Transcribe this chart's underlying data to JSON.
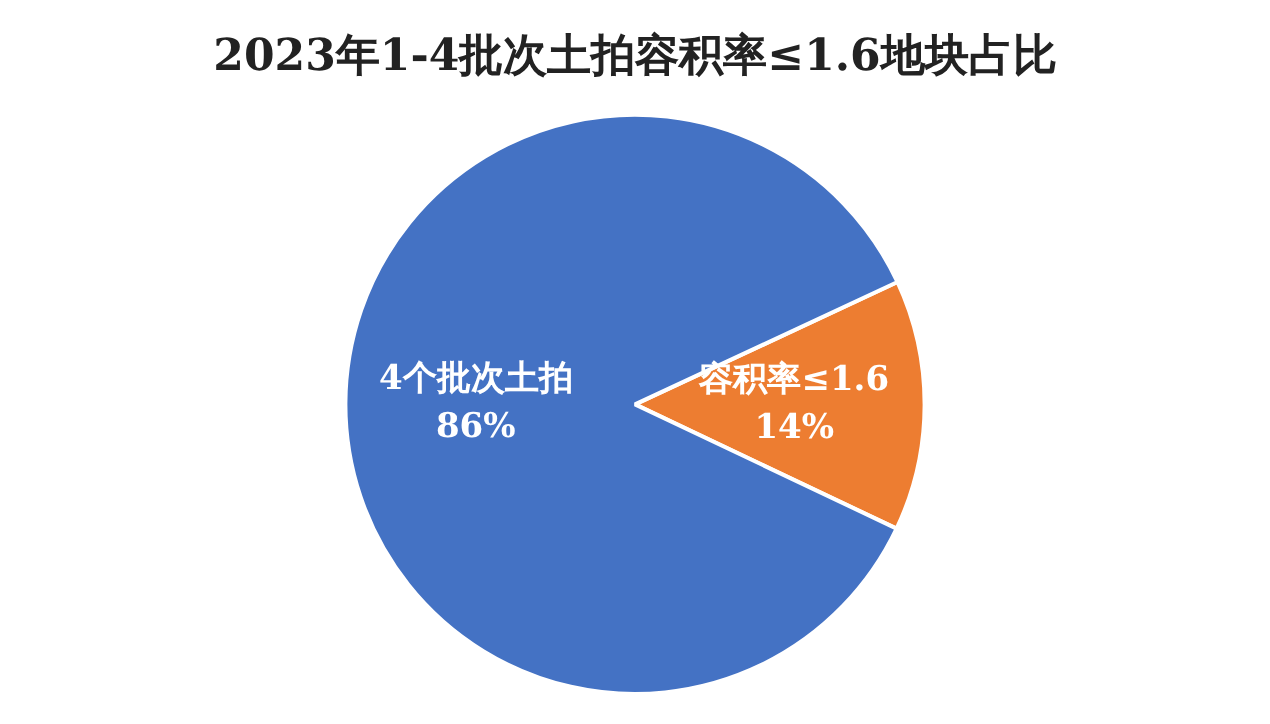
{
  "chart_data": {
    "type": "pie",
    "title": "2023年1-4批次土拍容积率≤1.6地块占比",
    "categories": [
      "容积率≤1.6",
      "4个批次土拍"
    ],
    "values": [
      14,
      86
    ],
    "colors": [
      "#ed7d31",
      "#4472c4"
    ],
    "value_labels": [
      "14%",
      "86%"
    ],
    "legend": false
  }
}
